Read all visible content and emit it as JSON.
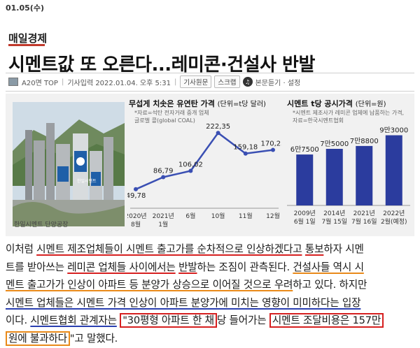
{
  "date": "01.05(수)",
  "brand": "매일경제",
  "headline": "시멘트값 또 오른다...레미콘·건설사 반발",
  "meta": {
    "page": "A20면 TOP",
    "published": "기사입력 2022.01.04. 오후 5:31",
    "buttons": [
      "기사원문",
      "스크랩"
    ],
    "listen": "본문듣기 · 설정"
  },
  "photo": {
    "caption": "한일시멘트 단양공장",
    "sign_text": "한일시멘트"
  },
  "colors": {
    "accent_red": "#d62020",
    "accent_blue": "#2a3fb0",
    "accent_orange": "#e98a1a",
    "line_color": "#3a4fb3",
    "bar_color": "#2b3c9e"
  },
  "chart_data": [
    {
      "type": "line",
      "title": "무섭게 치솟은 유연탄 가격",
      "unit": "(단위=t당 달러)",
      "note": [
        "*자료=석탄 전자거래 중개 업체",
        "글로벌 콜(global COAL)"
      ],
      "categories": [
        [
          "2020년",
          "8월"
        ],
        [
          "2021년",
          "1월"
        ],
        [
          "6월",
          ""
        ],
        [
          "10월",
          ""
        ],
        [
          "11월",
          ""
        ],
        [
          "12월",
          ""
        ]
      ],
      "values": [
        49.78,
        86.79,
        106.02,
        222.35,
        159.18,
        170.23
      ],
      "labels": [
        "49,78",
        "86,79",
        "106,02",
        "222,35",
        "159,18",
        "170,23"
      ],
      "ylim": [
        0,
        240
      ]
    },
    {
      "type": "bar",
      "title": "시멘트 t당 공시가격",
      "unit": "(단위=원)",
      "note": [
        "*시멘트 제조사가 레미콘 업체에 납품하는 가격,",
        "자료=한국시멘트협회"
      ],
      "categories": [
        [
          "2009년",
          "6월 1일"
        ],
        [
          "2014년",
          "7월 15일"
        ],
        [
          "2021년",
          "7월 16일"
        ],
        [
          "2022년",
          "2월(예정)"
        ]
      ],
      "values": [
        67500,
        75000,
        78800,
        93000
      ],
      "labels": [
        "6만7500",
        "7만5000",
        "7만8800",
        "9만3000"
      ],
      "ylim": [
        0,
        100000
      ]
    }
  ],
  "body": {
    "lines": [
      [
        {
          "t": "이처럼 ",
          "s": ""
        },
        {
          "t": "시멘트 제조업체들이 시멘트 출고가를 순차적으로 인상하겠다고",
          "s": "u-red"
        },
        {
          "t": " ",
          "s": ""
        },
        {
          "t": "통보",
          "s": "u-red"
        },
        {
          "t": "하자 시멘",
          "s": ""
        }
      ],
      [
        {
          "t": "트를 받아쓰는 ",
          "s": ""
        },
        {
          "t": "레미콘 업체들 사이에서는",
          "s": "u-red"
        },
        {
          "t": " ",
          "s": ""
        },
        {
          "t": "반발",
          "s": "u-red"
        },
        {
          "t": "하는 조짐이 관측된다. ",
          "s": ""
        },
        {
          "t": "건설사들 역시 시",
          "s": "u-orange"
        }
      ],
      [
        {
          "t": "멘트 출고가가 인상이 아파트 등 분양가 상승으로 이어질 것으로 우려",
          "s": "u-orange"
        },
        {
          "t": "하고 있다. 하지만",
          "s": ""
        }
      ],
      [
        {
          "t": "시멘트 업체들은 시멘트 가격 인상이 아파트 분양가에 미치는 영향이 미미하다는 입장",
          "s": "u-blue"
        }
      ],
      [
        {
          "t": "이다. ",
          "s": ""
        },
        {
          "t": "시멘트협회 관계자는",
          "s": "u-blue"
        },
        {
          "t": " ",
          "s": ""
        },
        {
          "t": "\"30평형 아파트 한 채",
          "s": "box-red"
        },
        {
          "t": "당 들어가는 ",
          "s": ""
        },
        {
          "t": "시멘트 조달비용은 157만",
          "s": "box-red"
        }
      ],
      [
        {
          "t": "원에 불과하다",
          "s": "box-orange"
        },
        {
          "t": "\"고 말했다.",
          "s": ""
        }
      ]
    ]
  }
}
